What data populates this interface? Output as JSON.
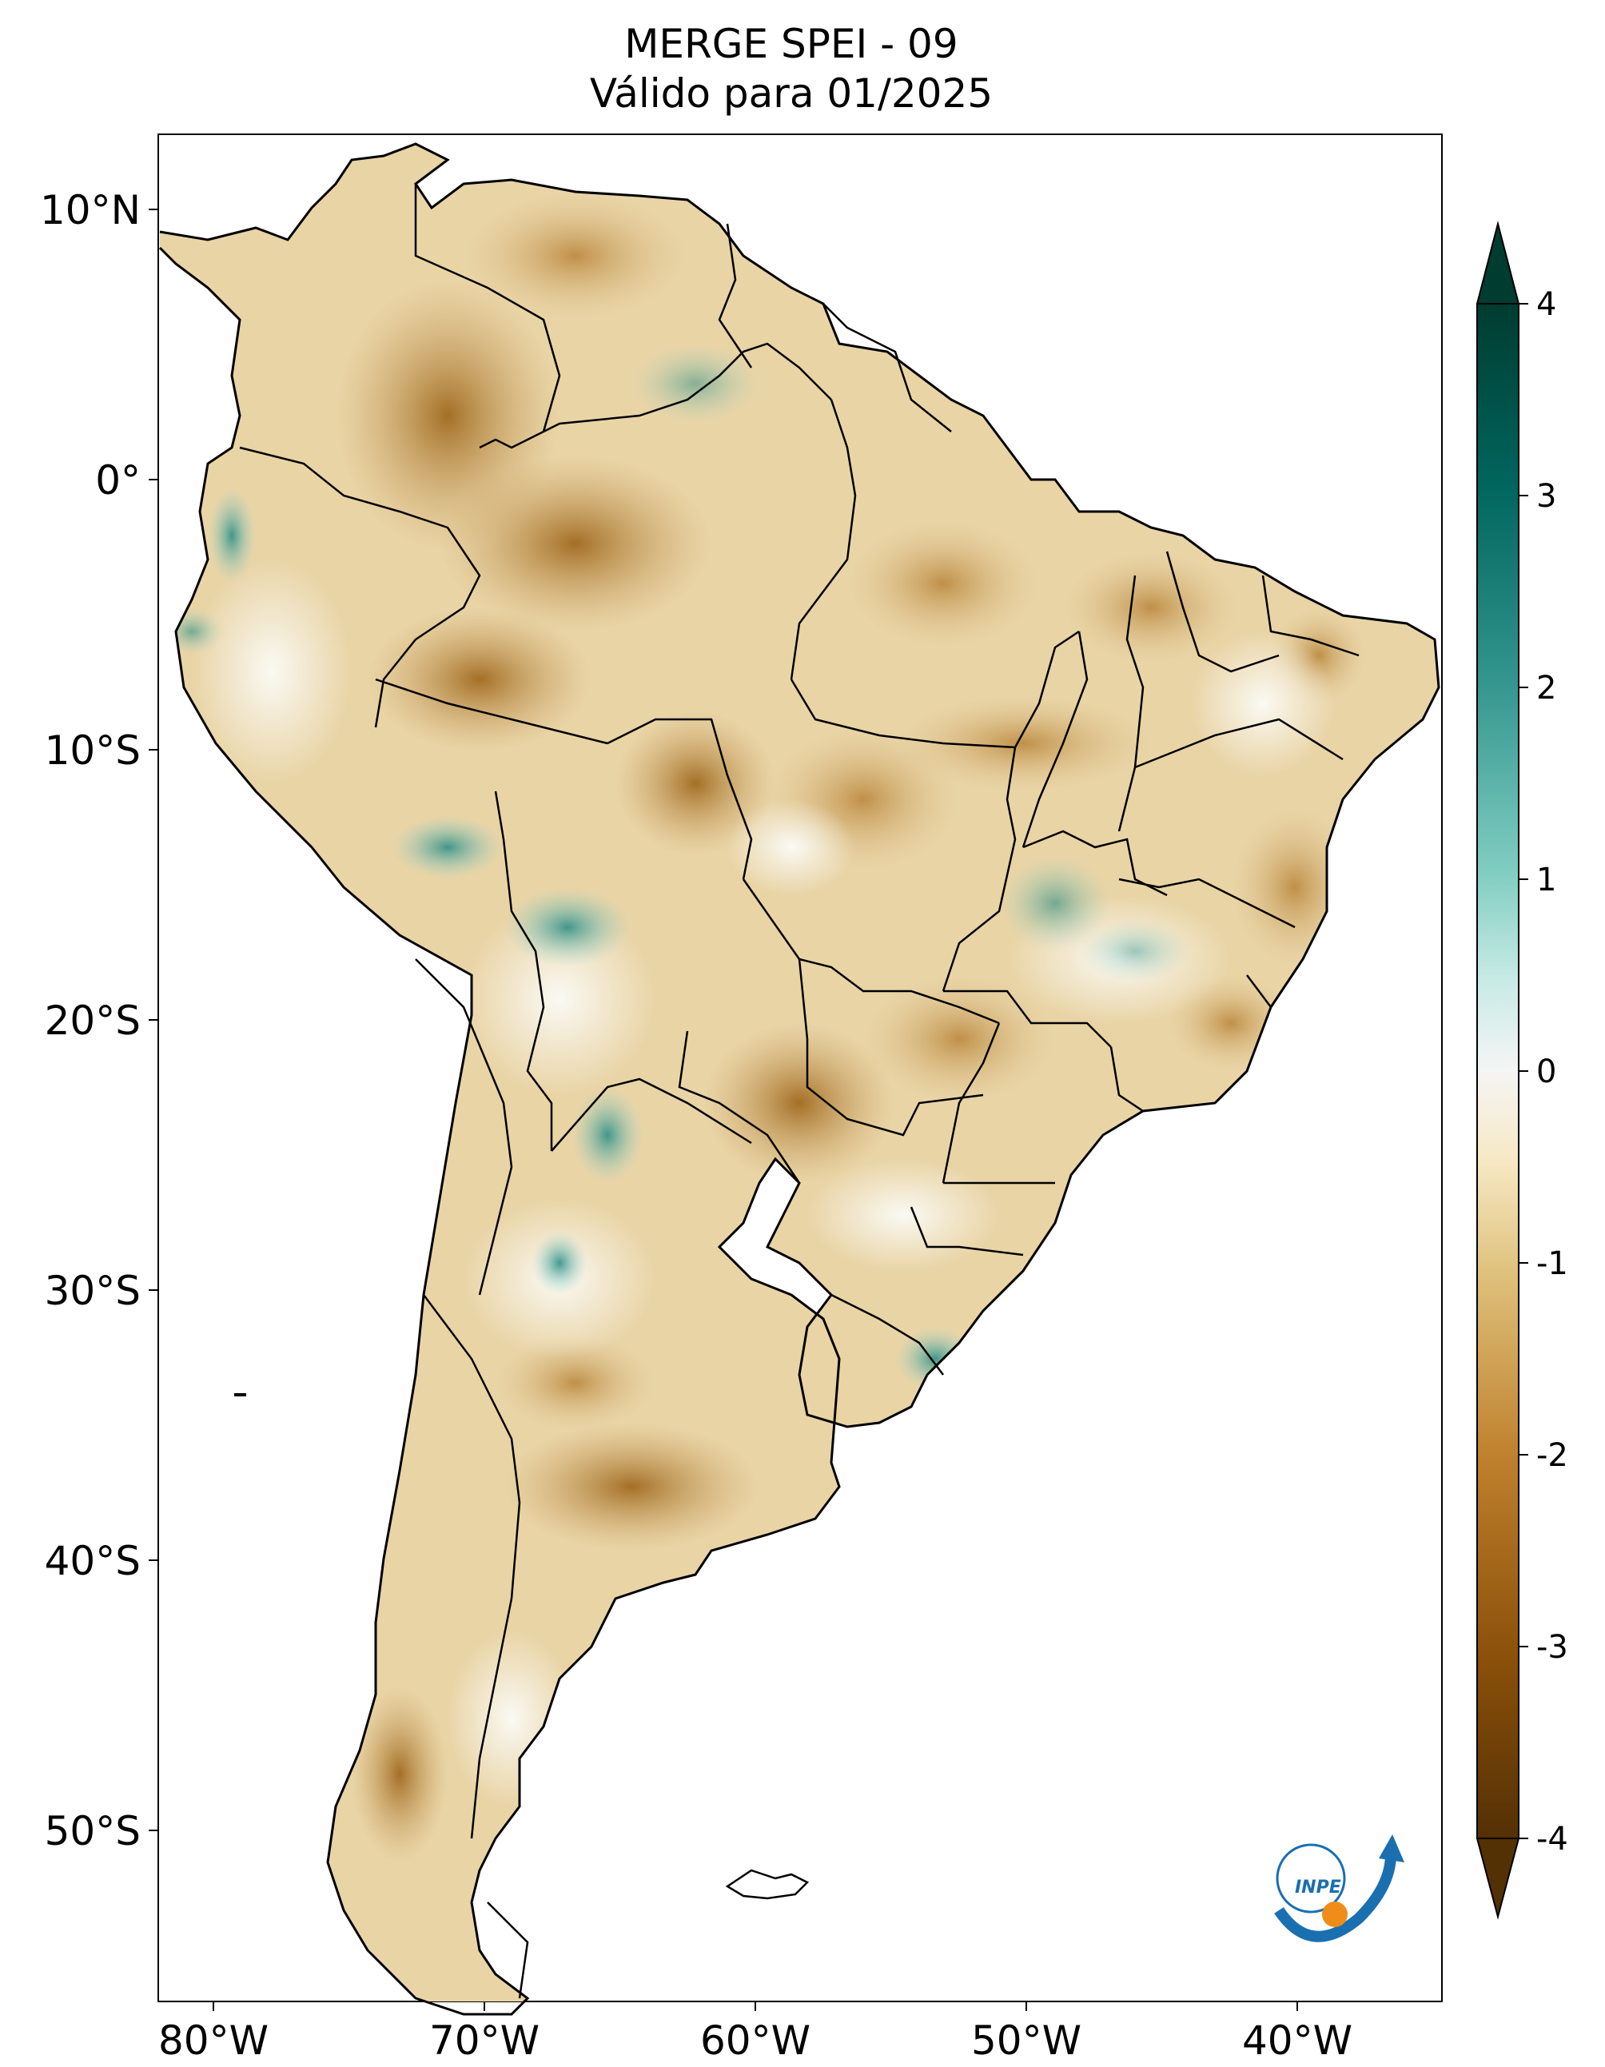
{
  "title": {
    "line1": "MERGE   SPEI - 09",
    "line2": "Válido para 01/2025"
  },
  "map": {
    "region": "South America",
    "lon_ticks": [
      "80°W",
      "70°W",
      "60°W",
      "50°W",
      "40°W"
    ],
    "lat_ticks": [
      "10°N",
      "0°",
      "10°S",
      "20°S",
      "30°S",
      "40°S",
      "50°S"
    ]
  },
  "colorbar": {
    "ticks": [
      "4",
      "3",
      "2",
      "1",
      "0",
      "-1",
      "-2",
      "-3",
      "-4"
    ],
    "colors": {
      "max": "#003c30",
      "high": "#35978f",
      "low_pos": "#c7eae5",
      "zero": "#f5f5f5",
      "low_neg": "#f6e8c3",
      "mid_neg": "#dfc27d",
      "neg": "#bf812d",
      "min": "#543005"
    }
  },
  "logo": {
    "text": "INPE"
  }
}
